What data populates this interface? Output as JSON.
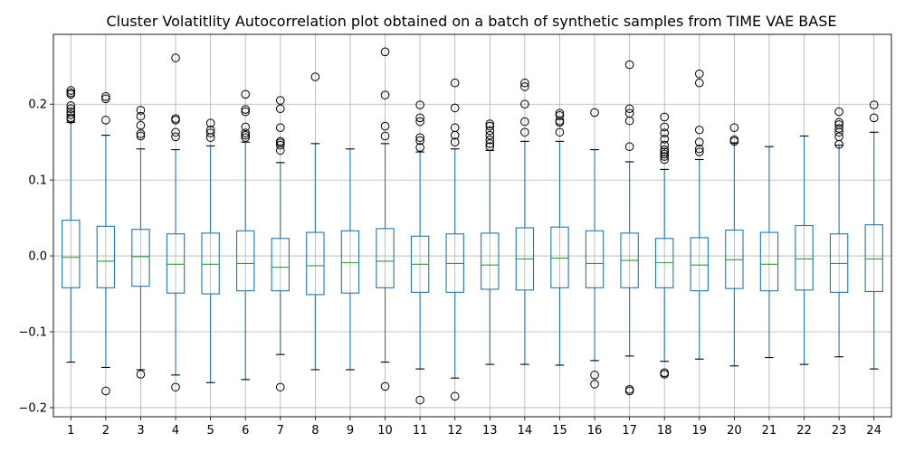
{
  "chart_data": {
    "type": "boxplot",
    "title": "Cluster Volatitlity Autocorrelation plot obtained on a batch of synthetic samples from TIME VAE BASE",
    "xlabel": "",
    "ylabel": "",
    "ylim": [
      -0.212,
      0.292
    ],
    "grid": true,
    "y_ticks": [
      -0.2,
      -0.1,
      0.0,
      0.1,
      0.2
    ],
    "y_tick_labels": [
      "−0.2",
      "−0.1",
      "0.0",
      "0.1",
      "0.2"
    ],
    "categories": [
      "1",
      "2",
      "3",
      "4",
      "5",
      "6",
      "7",
      "8",
      "9",
      "10",
      "11",
      "12",
      "13",
      "14",
      "15",
      "16",
      "17",
      "18",
      "19",
      "20",
      "21",
      "22",
      "23",
      "24"
    ],
    "colors": {
      "box": "#1f77b4",
      "median": "#2ca02c",
      "flier": "#000000",
      "grid": "#b0b0b0"
    },
    "boxes": [
      {
        "q1": -0.042,
        "median": -0.002,
        "q3": 0.047,
        "whislo": -0.14,
        "whishi": 0.176,
        "fliers": [
          0.218,
          0.215,
          0.213,
          0.198,
          0.194,
          0.19,
          0.186,
          0.182,
          0.18
        ]
      },
      {
        "q1": -0.042,
        "median": -0.007,
        "q3": 0.039,
        "whislo": -0.147,
        "whishi": 0.159,
        "fliers": [
          0.21,
          0.207,
          0.179,
          -0.178
        ]
      },
      {
        "q1": -0.04,
        "median": -0.001,
        "q3": 0.035,
        "whislo": -0.15,
        "whishi": 0.141,
        "fliers": [
          0.192,
          0.184,
          0.172,
          0.161,
          0.158,
          -0.156
        ]
      },
      {
        "q1": -0.049,
        "median": -0.011,
        "q3": 0.029,
        "whislo": -0.157,
        "whishi": 0.14,
        "fliers": [
          0.261,
          0.181,
          0.179,
          0.163,
          0.157,
          -0.173
        ]
      },
      {
        "q1": -0.05,
        "median": -0.011,
        "q3": 0.03,
        "whislo": -0.167,
        "whishi": 0.145,
        "fliers": [
          0.175,
          0.166,
          0.162,
          0.156
        ]
      },
      {
        "q1": -0.046,
        "median": -0.01,
        "q3": 0.033,
        "whislo": -0.163,
        "whishi": 0.15,
        "fliers": [
          0.213,
          0.193,
          0.19,
          0.17,
          0.162,
          0.159,
          0.156
        ]
      },
      {
        "q1": -0.046,
        "median": -0.015,
        "q3": 0.023,
        "whislo": -0.13,
        "whishi": 0.123,
        "fliers": [
          0.205,
          0.194,
          0.169,
          0.151,
          0.149,
          0.146,
          0.139,
          -0.173
        ]
      },
      {
        "q1": -0.051,
        "median": -0.013,
        "q3": 0.031,
        "whislo": -0.15,
        "whishi": 0.148,
        "fliers": [
          0.236
        ]
      },
      {
        "q1": -0.049,
        "median": -0.009,
        "q3": 0.033,
        "whislo": -0.15,
        "whishi": 0.141,
        "fliers": []
      },
      {
        "q1": -0.042,
        "median": -0.007,
        "q3": 0.036,
        "whislo": -0.14,
        "whishi": 0.148,
        "fliers": [
          0.269,
          0.212,
          0.171,
          0.158,
          -0.172
        ]
      },
      {
        "q1": -0.048,
        "median": -0.011,
        "q3": 0.026,
        "whislo": -0.149,
        "whishi": 0.137,
        "fliers": [
          0.199,
          0.182,
          0.177,
          0.156,
          0.152,
          0.143,
          -0.19
        ]
      },
      {
        "q1": -0.048,
        "median": -0.01,
        "q3": 0.029,
        "whislo": -0.161,
        "whishi": 0.141,
        "fliers": [
          0.228,
          0.195,
          0.169,
          0.159,
          0.15,
          -0.185
        ]
      },
      {
        "q1": -0.044,
        "median": -0.012,
        "q3": 0.03,
        "whislo": -0.143,
        "whishi": 0.139,
        "fliers": [
          0.174,
          0.171,
          0.165,
          0.159,
          0.153,
          0.148,
          0.144
        ]
      },
      {
        "q1": -0.045,
        "median": -0.004,
        "q3": 0.037,
        "whislo": -0.143,
        "whishi": 0.151,
        "fliers": [
          0.228,
          0.223,
          0.2,
          0.177,
          0.163
        ]
      },
      {
        "q1": -0.042,
        "median": -0.003,
        "q3": 0.038,
        "whislo": -0.144,
        "whishi": 0.151,
        "fliers": [
          0.188,
          0.185,
          0.178,
          0.176,
          0.163
        ]
      },
      {
        "q1": -0.042,
        "median": -0.01,
        "q3": 0.033,
        "whislo": -0.138,
        "whishi": 0.14,
        "fliers": [
          0.189,
          -0.157,
          -0.169
        ]
      },
      {
        "q1": -0.042,
        "median": -0.006,
        "q3": 0.03,
        "whislo": -0.132,
        "whishi": 0.124,
        "fliers": [
          0.252,
          0.194,
          0.188,
          0.178,
          0.144,
          -0.176,
          -0.178
        ]
      },
      {
        "q1": -0.042,
        "median": -0.009,
        "q3": 0.023,
        "whislo": -0.139,
        "whishi": 0.114,
        "fliers": [
          0.183,
          0.17,
          0.162,
          0.154,
          0.146,
          0.14,
          0.137,
          0.134,
          0.131,
          0.127,
          -0.154,
          -0.156
        ]
      },
      {
        "q1": -0.046,
        "median": -0.012,
        "q3": 0.024,
        "whislo": -0.136,
        "whishi": 0.127,
        "fliers": [
          0.24,
          0.228,
          0.166,
          0.15,
          0.141,
          0.137
        ]
      },
      {
        "q1": -0.043,
        "median": -0.005,
        "q3": 0.034,
        "whislo": -0.145,
        "whishi": 0.149,
        "fliers": [
          0.169,
          0.153,
          0.151
        ]
      },
      {
        "q1": -0.046,
        "median": -0.011,
        "q3": 0.031,
        "whislo": -0.134,
        "whishi": 0.144,
        "fliers": []
      },
      {
        "q1": -0.045,
        "median": -0.004,
        "q3": 0.04,
        "whislo": -0.143,
        "whishi": 0.158,
        "fliers": []
      },
      {
        "q1": -0.048,
        "median": -0.01,
        "q3": 0.029,
        "whislo": -0.133,
        "whishi": 0.146,
        "fliers": [
          0.19,
          0.176,
          0.173,
          0.168,
          0.163,
          0.157,
          0.147
        ]
      },
      {
        "q1": -0.047,
        "median": -0.004,
        "q3": 0.041,
        "whislo": -0.149,
        "whishi": 0.163,
        "fliers": [
          0.199,
          0.182
        ]
      }
    ]
  }
}
